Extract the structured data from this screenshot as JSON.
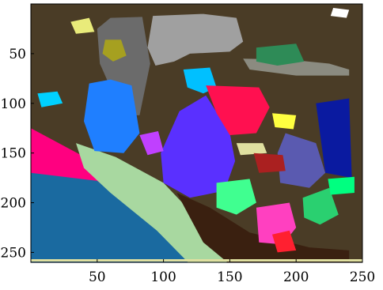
{
  "chart_data": {
    "type": "heatmap",
    "title": "",
    "xlabel": "",
    "ylabel": "",
    "xlim": [
      0,
      250
    ],
    "ylim": [
      260,
      0
    ],
    "y_axis_reversed": true,
    "grid": false,
    "legend": "none",
    "x_ticks": [
      "50",
      "100",
      "150",
      "200",
      "250"
    ],
    "x_tick_values": [
      50,
      100,
      150,
      200,
      250
    ],
    "y_ticks": [
      "50",
      "100",
      "150",
      "200",
      "250"
    ],
    "y_tick_values": [
      50,
      100,
      150,
      200,
      250
    ],
    "description_of_content": "image-like segmentation label map",
    "background_color": "#4a3c26",
    "regions": [
      {
        "color": "#4a3c26",
        "poly": [
          [
            0,
            0
          ],
          [
            250,
            0
          ],
          [
            250,
            260
          ],
          [
            0,
            260
          ]
        ]
      },
      {
        "color": "#6b6b6b",
        "poly": [
          [
            50,
            25
          ],
          [
            60,
            14
          ],
          [
            84,
            13
          ],
          [
            90,
            60
          ],
          [
            82,
            112
          ],
          [
            64,
            112
          ],
          [
            58,
            78
          ],
          [
            52,
            60
          ]
        ]
      },
      {
        "color": "#a0a0a0",
        "poly": [
          [
            92,
            12
          ],
          [
            130,
            10
          ],
          [
            155,
            14
          ],
          [
            160,
            38
          ],
          [
            150,
            48
          ],
          [
            120,
            50
          ],
          [
            108,
            58
          ],
          [
            94,
            62
          ],
          [
            88,
            44
          ]
        ]
      },
      {
        "color": "#8b8b80",
        "poly": [
          [
            160,
            55
          ],
          [
            195,
            56
          ],
          [
            225,
            60
          ],
          [
            240,
            66
          ],
          [
            240,
            72
          ],
          [
            200,
            72
          ],
          [
            165,
            66
          ]
        ]
      },
      {
        "color": "#ffffff",
        "poly": [
          [
            228,
            4
          ],
          [
            240,
            6
          ],
          [
            238,
            14
          ],
          [
            226,
            12
          ]
        ]
      },
      {
        "color": "#e9eb7a",
        "poly": [
          [
            30,
            18
          ],
          [
            44,
            14
          ],
          [
            48,
            28
          ],
          [
            34,
            30
          ]
        ]
      },
      {
        "color": "#a6a020",
        "poly": [
          [
            56,
            36
          ],
          [
            68,
            36
          ],
          [
            72,
            52
          ],
          [
            62,
            58
          ],
          [
            54,
            50
          ]
        ]
      },
      {
        "color": "#2e8b57",
        "poly": [
          [
            170,
            44
          ],
          [
            200,
            40
          ],
          [
            206,
            58
          ],
          [
            186,
            62
          ],
          [
            170,
            58
          ]
        ]
      },
      {
        "color": "#00c0ff",
        "poly": [
          [
            115,
            66
          ],
          [
            135,
            64
          ],
          [
            140,
            84
          ],
          [
            130,
            90
          ],
          [
            118,
            84
          ]
        ]
      },
      {
        "color": "#ff0080",
        "poly": [
          [
            0,
            125
          ],
          [
            60,
            168
          ],
          [
            110,
            232
          ],
          [
            140,
            262
          ],
          [
            0,
            262
          ]
        ]
      },
      {
        "color": "#1a6aa0",
        "poly": [
          [
            0,
            170
          ],
          [
            50,
            178
          ],
          [
            110,
            238
          ],
          [
            130,
            262
          ],
          [
            0,
            262
          ]
        ]
      },
      {
        "color": "#a8d8a0",
        "poly": [
          [
            34,
            140
          ],
          [
            64,
            154
          ],
          [
            100,
            180
          ],
          [
            132,
            225
          ],
          [
            150,
            262
          ],
          [
            120,
            262
          ],
          [
            95,
            228
          ],
          [
            60,
            190
          ],
          [
            40,
            165
          ]
        ]
      },
      {
        "color": "#3a2010",
        "poly": [
          [
            110,
            190
          ],
          [
            135,
            205
          ],
          [
            165,
            230
          ],
          [
            210,
            245
          ],
          [
            240,
            248
          ],
          [
            240,
            262
          ],
          [
            150,
            262
          ],
          [
            130,
            240
          ]
        ]
      },
      {
        "color": "#1f7fff",
        "poly": [
          [
            44,
            80
          ],
          [
            60,
            76
          ],
          [
            76,
            82
          ],
          [
            82,
            130
          ],
          [
            70,
            150
          ],
          [
            48,
            148
          ],
          [
            40,
            118
          ]
        ]
      },
      {
        "color": "#5a30ff",
        "poly": [
          [
            112,
            108
          ],
          [
            132,
            92
          ],
          [
            150,
            130
          ],
          [
            154,
            158
          ],
          [
            146,
            188
          ],
          [
            120,
            195
          ],
          [
            100,
            180
          ],
          [
            98,
            150
          ]
        ]
      },
      {
        "color": "#ff1050",
        "poly": [
          [
            132,
            82
          ],
          [
            172,
            84
          ],
          [
            180,
            104
          ],
          [
            170,
            130
          ],
          [
            150,
            132
          ],
          [
            140,
            110
          ]
        ]
      },
      {
        "color": "#5a5ab0",
        "poly": [
          [
            192,
            130
          ],
          [
            215,
            140
          ],
          [
            222,
            170
          ],
          [
            210,
            185
          ],
          [
            188,
            180
          ],
          [
            186,
            150
          ]
        ]
      },
      {
        "color": "#0a1aa0",
        "poly": [
          [
            215,
            100
          ],
          [
            240,
            95
          ],
          [
            242,
            175
          ],
          [
            222,
            170
          ]
        ]
      },
      {
        "color": "#ff40c0",
        "poly": [
          [
            170,
            205
          ],
          [
            195,
            200
          ],
          [
            200,
            225
          ],
          [
            190,
            242
          ],
          [
            172,
            240
          ]
        ]
      },
      {
        "color": "#40ff90",
        "poly": [
          [
            140,
            180
          ],
          [
            165,
            176
          ],
          [
            170,
            200
          ],
          [
            155,
            212
          ],
          [
            140,
            205
          ]
        ]
      },
      {
        "color": "#2ad070",
        "poly": [
          [
            205,
            195
          ],
          [
            225,
            185
          ],
          [
            232,
            212
          ],
          [
            218,
            222
          ],
          [
            206,
            215
          ]
        ]
      },
      {
        "color": "#ffff40",
        "poly": [
          [
            182,
            110
          ],
          [
            200,
            112
          ],
          [
            198,
            126
          ],
          [
            184,
            124
          ]
        ]
      },
      {
        "color": "#e0e0a0",
        "poly": [
          [
            155,
            140
          ],
          [
            175,
            140
          ],
          [
            178,
            150
          ],
          [
            158,
            152
          ]
        ]
      },
      {
        "color": "#aa2020",
        "poly": [
          [
            168,
            150
          ],
          [
            190,
            152
          ],
          [
            192,
            168
          ],
          [
            172,
            170
          ]
        ]
      },
      {
        "color": "#ff2030",
        "poly": [
          [
            182,
            232
          ],
          [
            195,
            228
          ],
          [
            200,
            248
          ],
          [
            186,
            250
          ]
        ]
      },
      {
        "color": "#c040ff",
        "poly": [
          [
            82,
            132
          ],
          [
            96,
            128
          ],
          [
            100,
            148
          ],
          [
            88,
            152
          ]
        ]
      },
      {
        "color": "#00d0ff",
        "poly": [
          [
            5,
            90
          ],
          [
            20,
            88
          ],
          [
            24,
            100
          ],
          [
            8,
            104
          ]
        ]
      },
      {
        "color": "#00ff80",
        "poly": [
          [
            224,
            176
          ],
          [
            244,
            174
          ],
          [
            244,
            190
          ],
          [
            226,
            192
          ]
        ]
      }
    ],
    "border_color": "#e0e0a0"
  }
}
